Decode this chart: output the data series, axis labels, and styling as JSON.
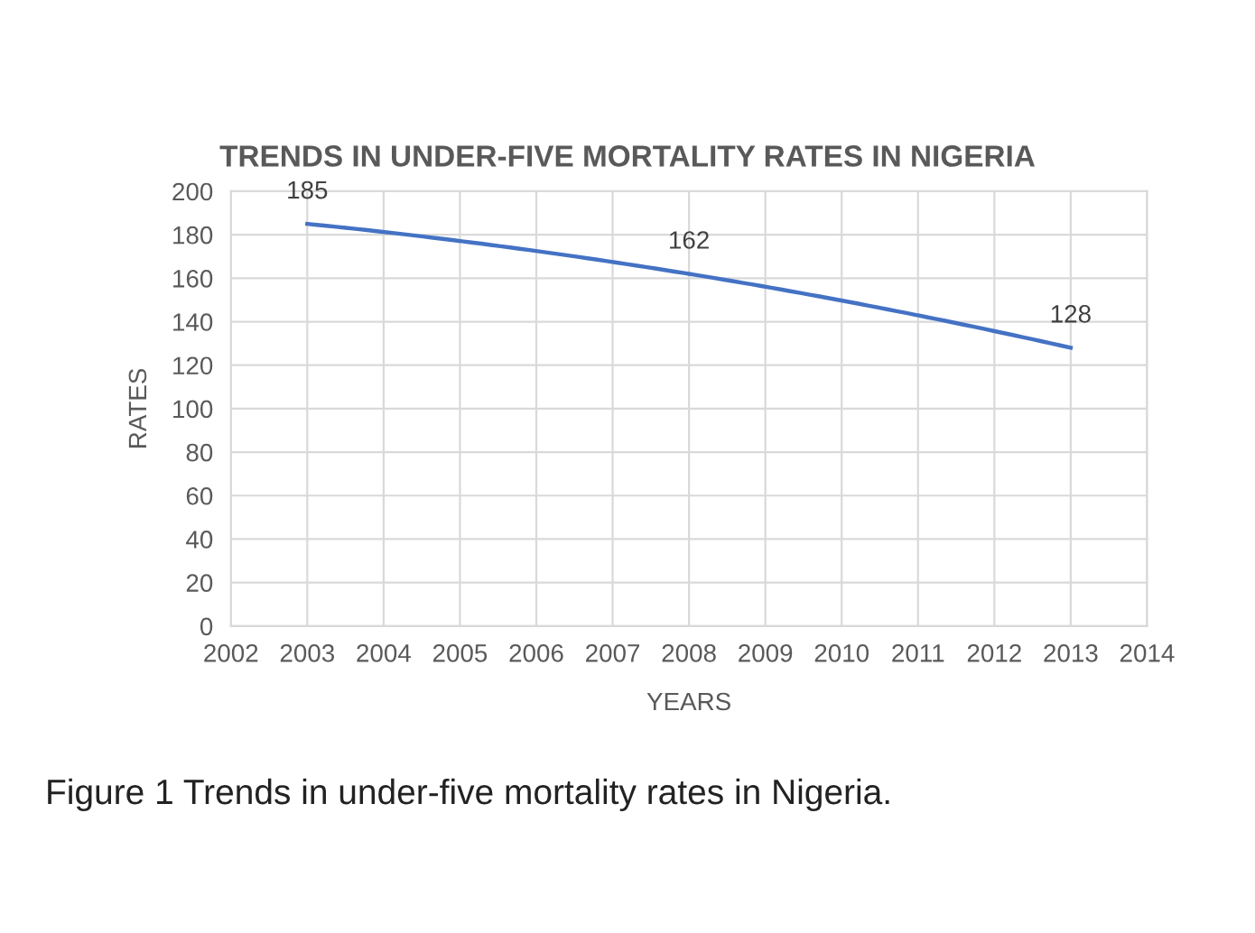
{
  "chart_data": {
    "type": "line",
    "title": "TRENDS IN UNDER-FIVE MORTALITY RATES IN NIGERIA",
    "xlabel": "YEARS",
    "ylabel": "RATES",
    "x": [
      2003,
      2008,
      2013
    ],
    "series": [
      {
        "color": "#4472c4",
        "values": [
          185,
          162,
          128
        ]
      }
    ],
    "xlim": [
      2002,
      2014
    ],
    "xticks": [
      2002,
      2003,
      2004,
      2005,
      2006,
      2007,
      2008,
      2009,
      2010,
      2011,
      2012,
      2013,
      2014
    ],
    "ylim": [
      0,
      200
    ],
    "yticks": [
      0,
      20,
      40,
      60,
      80,
      100,
      120,
      140,
      160,
      180,
      200
    ],
    "grid": true,
    "data_labels": true,
    "marker": "none",
    "line_style": "solid",
    "annotations": [
      "Figure 1 Trends in under-five mortality rates in Nigeria."
    ]
  }
}
